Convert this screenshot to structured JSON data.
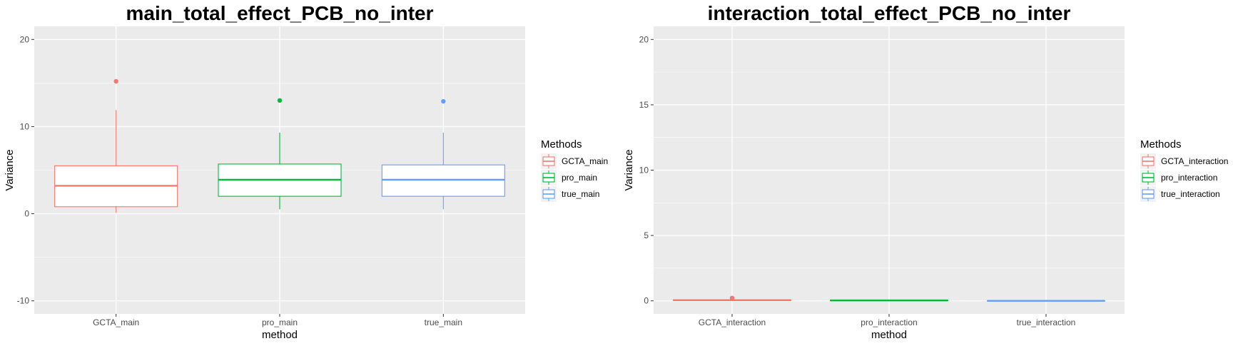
{
  "chart_data": [
    {
      "type": "box",
      "title": "main_total_effect_PCB_no_inter",
      "xlabel": "method",
      "ylabel": "Variance",
      "ylim": [
        -11.5,
        21.5
      ],
      "yticks": [
        -10,
        0,
        10,
        20
      ],
      "categories": [
        "GCTA_main",
        "pro_main",
        "true_main"
      ],
      "colors": [
        "#F8766D",
        "#00BA38",
        "#619CFF"
      ],
      "boxes": [
        {
          "q1": 0.8,
          "median": 3.2,
          "q3": 5.5,
          "whisker_low": 0.1,
          "whisker_high": 11.9,
          "outliers": [
            15.2
          ]
        },
        {
          "q1": 2.0,
          "median": 3.9,
          "q3": 5.7,
          "whisker_low": 0.5,
          "whisker_high": 9.3,
          "outliers": [
            13.0
          ]
        },
        {
          "q1": 2.0,
          "median": 3.9,
          "q3": 5.6,
          "whisker_low": 0.5,
          "whisker_high": 9.3,
          "outliers": [
            12.9
          ]
        }
      ],
      "grid": true,
      "legend": {
        "title": "Methods",
        "placement": "right",
        "entries": [
          "GCTA_main",
          "pro_main",
          "true_main"
        ]
      }
    },
    {
      "type": "box",
      "title": "interaction_total_effect_PCB_no_inter",
      "xlabel": "method",
      "ylabel": "Variance",
      "ylim": [
        -1,
        21
      ],
      "yticks": [
        0,
        5,
        10,
        15,
        20
      ],
      "categories": [
        "GCTA_interaction",
        "pro_interaction",
        "true_interaction"
      ],
      "colors": [
        "#F8766D",
        "#00BA38",
        "#619CFF"
      ],
      "boxes": [
        {
          "q1": 0.03,
          "median": 0.05,
          "q3": 0.08,
          "whisker_low": 0.0,
          "whisker_high": 0.12,
          "outliers": [
            0.22
          ]
        },
        {
          "q1": 0.02,
          "median": 0.03,
          "q3": 0.05,
          "whisker_low": 0.0,
          "whisker_high": 0.07,
          "outliers": []
        },
        {
          "q1": 0.0,
          "median": 0.0,
          "q3": 0.0,
          "whisker_low": 0.0,
          "whisker_high": 0.0,
          "outliers": []
        }
      ],
      "grid": true,
      "legend": {
        "title": "Methods",
        "placement": "right",
        "entries": [
          "GCTA_interaction",
          "pro_interaction",
          "true_interaction"
        ]
      }
    }
  ]
}
